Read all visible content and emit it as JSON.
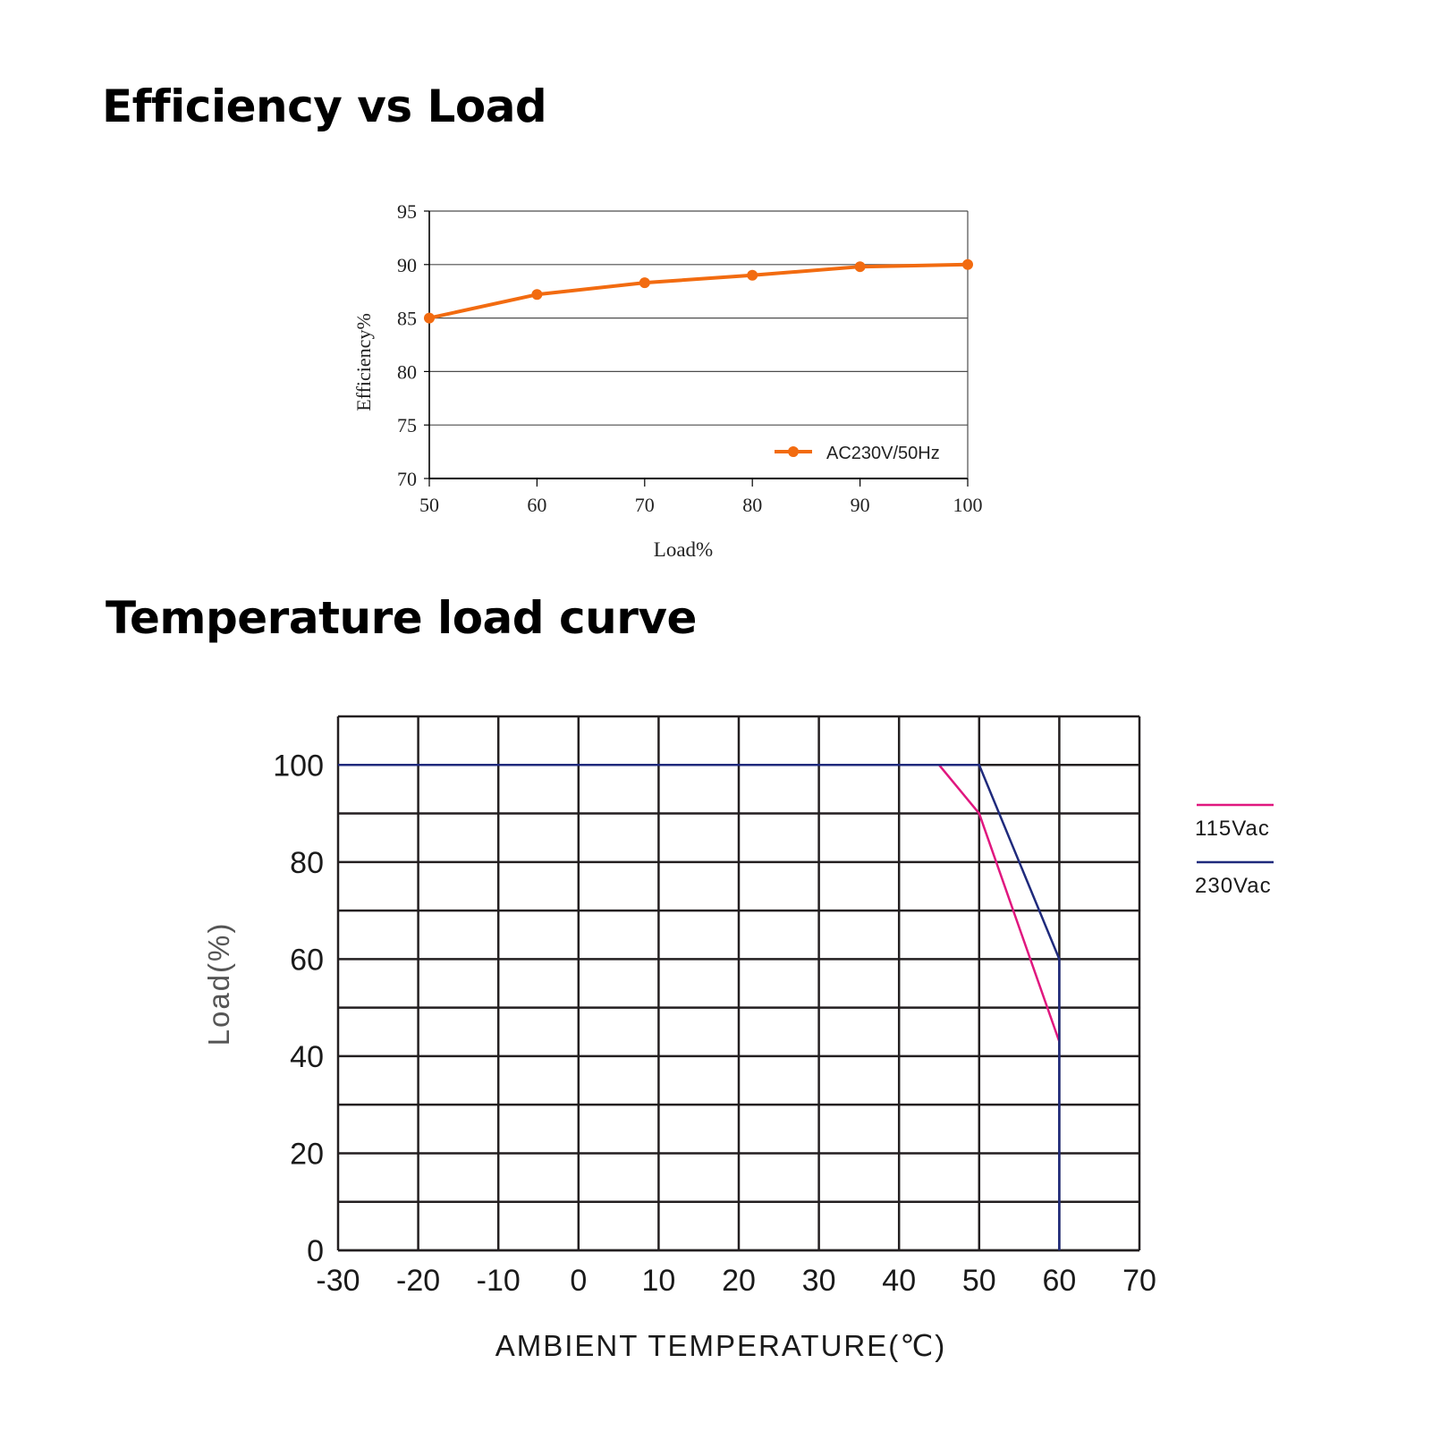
{
  "titles": {
    "efficiency": "Efficiency vs Load",
    "temperature": "Temperature load curve"
  },
  "colors": {
    "orange": "#f26b10",
    "magenta": "#e0177f",
    "navy": "#1f2a7c",
    "grid_dark": "#231f20",
    "axis_text_gray": "#555555"
  },
  "chart_data": [
    {
      "type": "line",
      "title": "Efficiency vs Load",
      "xlabel": "Load%",
      "ylabel": "Efficiency%",
      "xlim": [
        50,
        100
      ],
      "ylim": [
        70,
        95
      ],
      "x_ticks": [
        "50",
        "60",
        "70",
        "80",
        "90",
        "100"
      ],
      "y_ticks": [
        "95",
        "90",
        "85",
        "80",
        "75",
        "70"
      ],
      "grid": "horizontal",
      "legend_position": "bottom-right",
      "series": [
        {
          "name": "AC230V/50Hz",
          "color": "#f26b10",
          "x": [
            50,
            60,
            70,
            80,
            90,
            100
          ],
          "y": [
            85,
            87.2,
            88.3,
            89.0,
            89.8,
            90.0
          ]
        }
      ]
    },
    {
      "type": "line",
      "title": "Temperature load curve",
      "xlabel": "AMBIENT TEMPERATURE(℃)",
      "ylabel": "Load(%)",
      "xlim": [
        -30,
        70
      ],
      "ylim": [
        0,
        110
      ],
      "x_ticks": [
        "-30",
        "-20",
        "-10",
        "0",
        "10",
        "20",
        "30",
        "40",
        "50",
        "60",
        "70"
      ],
      "y_ticks": [
        "100",
        "80",
        "60",
        "40",
        "20",
        "0"
      ],
      "grid": "on",
      "legend_position": "right",
      "series": [
        {
          "name": "115Vac",
          "color": "#e0177f",
          "x": [
            -30,
            45,
            50,
            60
          ],
          "y": [
            100,
            100,
            90,
            43
          ]
        },
        {
          "name": "230Vac",
          "color": "#1f2a7c",
          "x": [
            -30,
            50,
            60,
            60
          ],
          "y": [
            100,
            100,
            60,
            0
          ]
        }
      ]
    }
  ]
}
